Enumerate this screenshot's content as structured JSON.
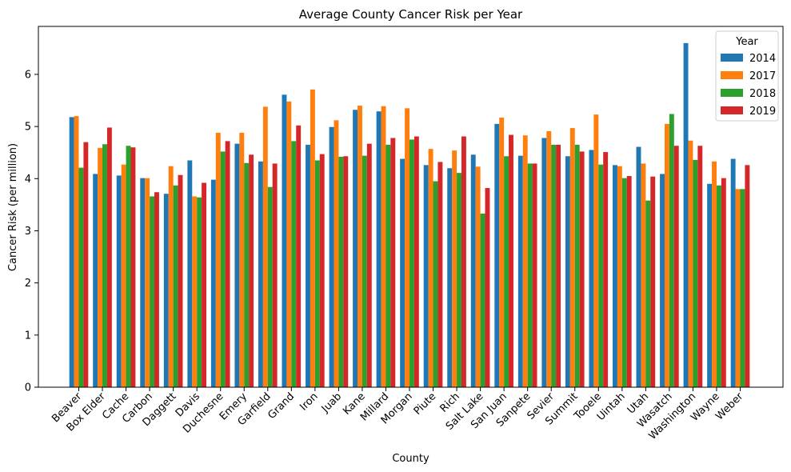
{
  "chart_data": {
    "type": "bar",
    "title": "Average County Cancer Risk per Year",
    "xlabel": "County",
    "ylabel": "Cancer Risk (per million)",
    "ylim": [
      0,
      6.92
    ],
    "yticks": [
      "0",
      "1",
      "2",
      "3",
      "4",
      "5",
      "6"
    ],
    "legend_title": "Year",
    "legend_position": "top-right",
    "grid": false,
    "categories": [
      "Beaver",
      "Box Elder",
      "Cache",
      "Carbon",
      "Daggett",
      "Davis",
      "Duchesne",
      "Emery",
      "Garfield",
      "Grand",
      "Iron",
      "Juab",
      "Kane",
      "Millard",
      "Morgan",
      "Piute",
      "Rich",
      "Salt Lake",
      "San Juan",
      "Sanpete",
      "Sevier",
      "Summit",
      "Tooele",
      "Uintah",
      "Utah",
      "Wasatch",
      "Washington",
      "Wayne",
      "Weber"
    ],
    "series": [
      {
        "name": "2014",
        "color": "#1f77b4",
        "values": [
          5.18,
          4.09,
          4.06,
          4.01,
          3.71,
          4.35,
          3.98,
          4.67,
          4.33,
          5.61,
          4.65,
          4.99,
          5.32,
          5.29,
          4.38,
          4.26,
          4.2,
          4.46,
          5.05,
          4.44,
          4.78,
          4.43,
          4.55,
          4.26,
          4.61,
          4.09,
          6.6,
          3.9,
          4.38
        ]
      },
      {
        "name": "2017",
        "color": "#ff7f0e",
        "values": [
          5.2,
          4.59,
          4.27,
          4.01,
          4.24,
          3.66,
          4.88,
          4.88,
          5.38,
          5.48,
          5.71,
          5.12,
          5.4,
          5.39,
          5.35,
          4.57,
          4.54,
          4.23,
          5.17,
          4.83,
          4.91,
          4.97,
          5.23,
          4.24,
          4.29,
          5.05,
          4.73,
          4.33,
          3.8
        ]
      },
      {
        "name": "2018",
        "color": "#2ca02c",
        "values": [
          4.21,
          4.66,
          4.63,
          3.66,
          3.87,
          3.64,
          4.52,
          4.3,
          3.84,
          4.72,
          4.35,
          4.42,
          4.44,
          4.65,
          4.75,
          3.95,
          4.11,
          3.33,
          4.43,
          4.29,
          4.65,
          4.65,
          4.27,
          4.01,
          3.58,
          5.24,
          4.36,
          3.87,
          3.8
        ]
      },
      {
        "name": "2019",
        "color": "#d62728",
        "values": [
          4.7,
          4.98,
          4.6,
          3.74,
          4.07,
          3.92,
          4.72,
          4.46,
          4.29,
          5.02,
          4.47,
          4.43,
          4.67,
          4.78,
          4.81,
          4.32,
          4.81,
          3.82,
          4.84,
          4.29,
          4.65,
          4.52,
          4.51,
          4.05,
          4.04,
          4.63,
          4.63,
          4.01,
          4.26
        ]
      }
    ]
  }
}
